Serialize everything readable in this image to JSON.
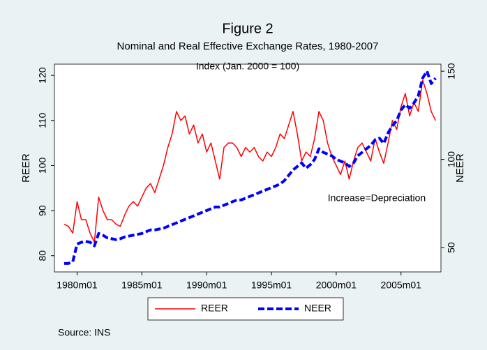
{
  "chart_data": {
    "type": "line",
    "title": "Figure 2",
    "subtitle": "Nominal and Real Effective Exchange Rates, 1980-2007",
    "annotations": [
      "Index (Jan. 2000 = 100)",
      "Increase=Depreciation"
    ],
    "source": "Source: INS",
    "y_label": "REER",
    "y2_label": "NEER",
    "x": [
      228,
      232,
      236,
      240,
      244,
      248,
      252,
      256,
      260,
      264,
      268,
      272,
      276,
      280,
      284,
      288,
      292,
      296,
      300,
      304,
      308,
      312,
      316,
      320,
      324,
      328,
      332,
      336,
      340,
      344,
      348,
      352,
      356,
      360,
      364,
      368,
      372,
      376,
      380,
      384,
      388,
      392,
      396,
      400,
      404,
      408,
      412,
      416,
      420,
      424,
      428,
      432,
      436,
      440,
      444,
      448,
      452,
      456,
      460,
      464,
      468,
      472,
      476,
      480,
      484,
      488,
      492,
      496,
      500,
      504,
      508,
      512,
      516,
      520,
      524,
      528,
      532,
      536,
      540,
      544,
      548,
      552,
      556,
      560,
      564,
      568,
      572
    ],
    "xlim": [
      219,
      577
    ],
    "xticks": [
      {
        "value": 240,
        "label": "1980m01"
      },
      {
        "value": 300,
        "label": "1985m01"
      },
      {
        "value": 360,
        "label": "1990m01"
      },
      {
        "value": 420,
        "label": "1995m01"
      },
      {
        "value": 480,
        "label": "2000m01"
      },
      {
        "value": 540,
        "label": "2005m01"
      }
    ],
    "ylim": [
      76.4,
      122.5
    ],
    "yticks": [
      80,
      90,
      100,
      110,
      120
    ],
    "y2lim": [
      36.2,
      154
    ],
    "y2ticks": [
      50,
      100,
      150
    ],
    "legend": "bottom",
    "series": [
      {
        "name": "REER",
        "color": "#ff0000",
        "values": [
          87,
          86.5,
          85,
          92,
          88,
          88,
          85,
          83,
          93,
          90,
          88,
          88,
          87,
          86.5,
          89,
          91,
          92,
          91,
          93,
          95,
          96,
          94,
          97,
          100,
          104,
          107,
          112,
          110,
          111,
          107,
          109,
          105,
          107,
          103,
          105,
          101,
          97,
          104,
          105,
          105,
          104,
          102,
          104,
          103,
          104,
          102,
          101,
          103,
          102,
          104,
          107,
          106,
          109,
          112,
          107,
          101,
          103,
          102,
          106,
          112,
          110,
          105,
          102,
          100,
          98,
          101,
          97,
          101,
          104,
          105,
          103,
          101,
          106,
          103,
          100.5,
          105,
          110,
          108,
          113,
          116,
          111,
          114,
          112,
          119,
          116,
          112,
          110
        ]
      },
      {
        "name": "NEER",
        "color": "#0000ff",
        "axis": "y2",
        "values": [
          41,
          41,
          42,
          52,
          53,
          53.5,
          53,
          51,
          58,
          57,
          55.5,
          55,
          54.5,
          55,
          56,
          56.5,
          57,
          57.5,
          58,
          59,
          60,
          60,
          60.5,
          61,
          62,
          63,
          64,
          65,
          66,
          67,
          68,
          69,
          70,
          71,
          72,
          73,
          73,
          74,
          75,
          76,
          77,
          77,
          78,
          79,
          80,
          81,
          82,
          83,
          84,
          85,
          86,
          88,
          91,
          94,
          96,
          98,
          95,
          97,
          100,
          106,
          104,
          103,
          102,
          100,
          99,
          98,
          96,
          98,
          102,
          104,
          106,
          108,
          111,
          112,
          109,
          115,
          119,
          122,
          128,
          131,
          129,
          132,
          136,
          146,
          150,
          143,
          146
        ]
      }
    ]
  }
}
